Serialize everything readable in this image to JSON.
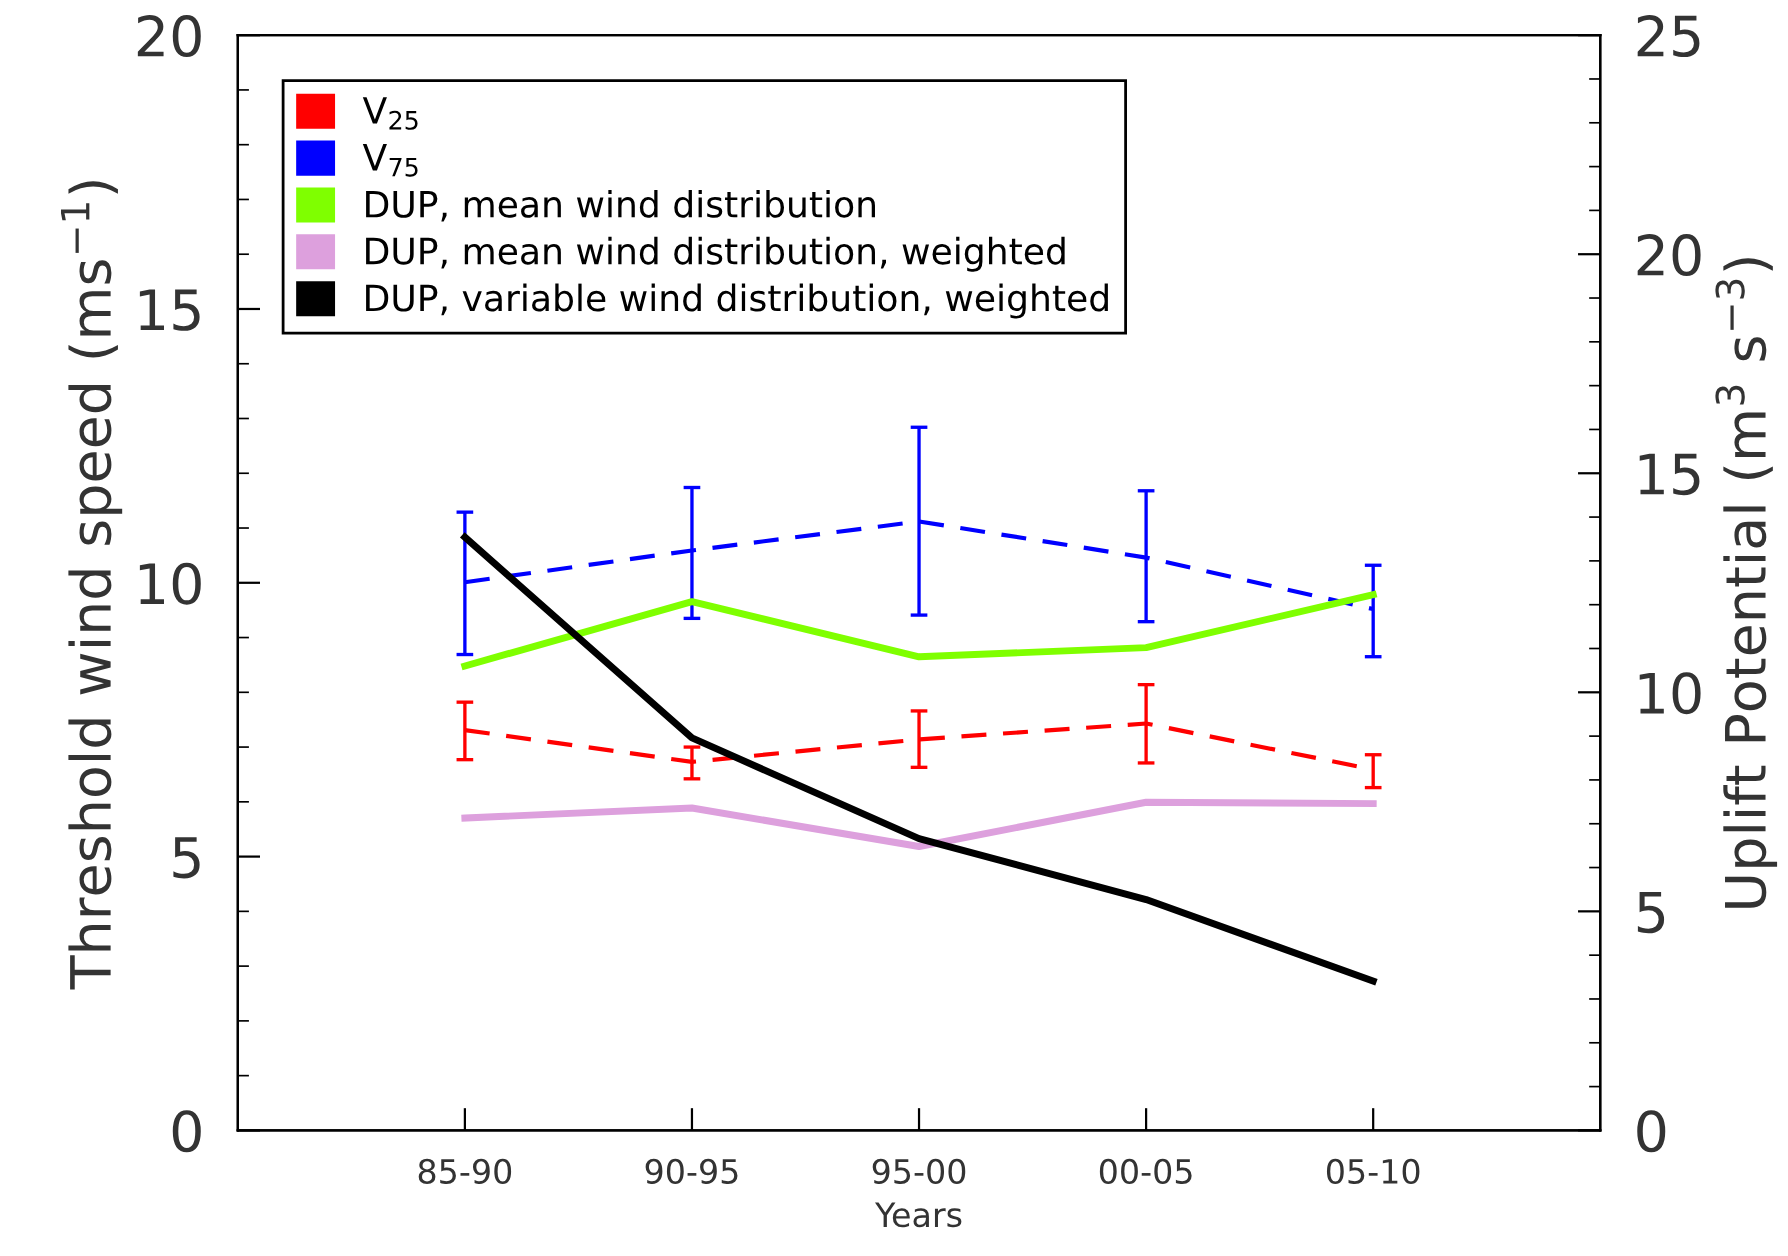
{
  "chart_data": {
    "type": "line",
    "xlabel": "Years",
    "ylabel": "Threshold wind speed (ms$^{−1}$)",
    "y2label": "Uplift Potential (m$^{3}$ s$^{−3}$)",
    "categories": [
      "85-90",
      "90-95",
      "95-00",
      "00-05",
      "05-10"
    ],
    "series": [
      {
        "name": "V$_{25}$",
        "color": "#ff0000",
        "line_style": "dashed",
        "values": [
          7.31,
          6.73,
          7.14,
          7.43,
          6.59
        ],
        "errors": [
          [
            6.77,
            7.82
          ],
          [
            6.42,
            7.0
          ],
          [
            6.63,
            7.66
          ],
          [
            6.71,
            8.14
          ],
          [
            6.26,
            6.86
          ]
        ]
      },
      {
        "name": "V$_{75}$",
        "color": "#0000ff",
        "line_style": "dashed",
        "values": [
          10.01,
          10.59,
          11.12,
          10.46,
          9.52
        ],
        "errors": [
          [
            8.69,
            11.29
          ],
          [
            9.35,
            11.74
          ],
          [
            9.41,
            12.84
          ],
          [
            9.29,
            11.68
          ],
          [
            8.65,
            10.32
          ]
        ]
      },
      {
        "name": "DUP, mean wind distribution",
        "color": "#7fff00",
        "line_style": "solid",
        "axis": "y2",
        "values": [
          10.6,
          12.07,
          10.81,
          11.02,
          12.23
        ]
      },
      {
        "name": "DUP, mean wind distribution, weighted",
        "color": "#dda0dd",
        "line_style": "solid",
        "axis": "y2",
        "values": [
          7.13,
          7.36,
          6.48,
          7.49,
          7.46
        ]
      },
      {
        "name": "DUP, variable wind distribution, weighted",
        "color": "#000000",
        "line_style": "solid",
        "axis": "y2",
        "values": [
          13.54,
          8.96,
          6.66,
          5.27,
          3.41
        ]
      }
    ],
    "ylim": [
      0,
      20
    ],
    "yticks": [
      0,
      5,
      10,
      15,
      20
    ],
    "y2lim": [
      0,
      25
    ],
    "y2ticks": [
      0,
      5,
      10,
      15,
      20,
      25
    ],
    "grid": false,
    "legend": "top left",
    "marker": "none"
  }
}
